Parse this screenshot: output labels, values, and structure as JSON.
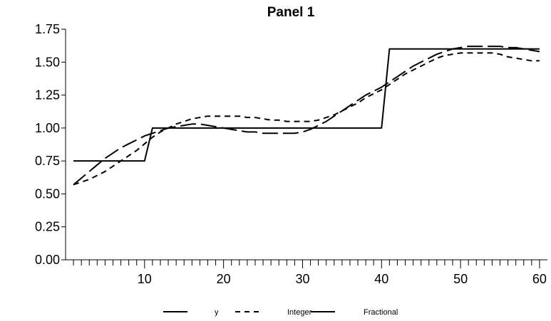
{
  "chart_data": {
    "type": "line",
    "title": "Panel 1",
    "xlabel": "",
    "ylabel": "",
    "xlim": [
      0,
      61
    ],
    "ylim": [
      0,
      1.75
    ],
    "x_ticks": [
      10,
      20,
      30,
      40,
      50,
      60
    ],
    "y_ticks": [
      0.0,
      0.25,
      0.5,
      0.75,
      1.0,
      1.25,
      1.5,
      1.75
    ],
    "y_tick_labels": [
      "0.00",
      "0.25",
      "0.50",
      "0.75",
      "1.00",
      "1.25",
      "1.50",
      "1.75"
    ],
    "x_tick_labels": [
      "10",
      "20",
      "30",
      "40",
      "50",
      "60"
    ],
    "grid": false,
    "legend_position": "bottom",
    "series": [
      {
        "name": "y",
        "style": "solid",
        "x": [
          1,
          10,
          11,
          40,
          41,
          60
        ],
        "y": [
          0.75,
          0.75,
          1.0,
          1.0,
          1.6,
          1.6
        ]
      },
      {
        "name": "Integer",
        "style": "dashed",
        "x": [
          1,
          2,
          3,
          4,
          5,
          6,
          7,
          8,
          9,
          10,
          11,
          12,
          13,
          14,
          15,
          16,
          17,
          18,
          19,
          20,
          21,
          22,
          23,
          24,
          25,
          26,
          27,
          28,
          29,
          30,
          31,
          32,
          33,
          34,
          35,
          36,
          37,
          38,
          39,
          40,
          41,
          42,
          43,
          44,
          45,
          46,
          47,
          48,
          49,
          50,
          51,
          52,
          53,
          54,
          55,
          56,
          57,
          58,
          59,
          60
        ],
        "y": [
          0.57,
          0.59,
          0.61,
          0.64,
          0.67,
          0.71,
          0.75,
          0.79,
          0.83,
          0.88,
          0.93,
          0.97,
          1.0,
          1.03,
          1.05,
          1.07,
          1.08,
          1.09,
          1.09,
          1.09,
          1.09,
          1.09,
          1.08,
          1.08,
          1.07,
          1.06,
          1.06,
          1.05,
          1.05,
          1.05,
          1.05,
          1.06,
          1.08,
          1.1,
          1.13,
          1.16,
          1.19,
          1.23,
          1.26,
          1.29,
          1.33,
          1.37,
          1.41,
          1.44,
          1.47,
          1.5,
          1.53,
          1.55,
          1.56,
          1.57,
          1.57,
          1.57,
          1.57,
          1.57,
          1.56,
          1.54,
          1.53,
          1.52,
          1.51,
          1.51
        ]
      },
      {
        "name": "Fractional",
        "style": "long-dash",
        "x": [
          1,
          2,
          3,
          4,
          5,
          6,
          7,
          8,
          9,
          10,
          11,
          12,
          13,
          14,
          15,
          16,
          17,
          18,
          19,
          20,
          21,
          22,
          23,
          24,
          25,
          26,
          27,
          28,
          29,
          30,
          31,
          32,
          33,
          34,
          35,
          36,
          37,
          38,
          39,
          40,
          41,
          42,
          43,
          44,
          45,
          46,
          47,
          48,
          49,
          50,
          51,
          52,
          53,
          54,
          55,
          56,
          57,
          58,
          59,
          60
        ],
        "y": [
          0.57,
          0.62,
          0.67,
          0.72,
          0.77,
          0.81,
          0.85,
          0.88,
          0.91,
          0.94,
          0.96,
          0.98,
          1.0,
          1.01,
          1.02,
          1.03,
          1.03,
          1.02,
          1.01,
          1.0,
          0.99,
          0.98,
          0.97,
          0.97,
          0.96,
          0.96,
          0.96,
          0.96,
          0.96,
          0.97,
          0.99,
          1.02,
          1.05,
          1.09,
          1.13,
          1.17,
          1.21,
          1.25,
          1.28,
          1.31,
          1.35,
          1.39,
          1.43,
          1.47,
          1.5,
          1.53,
          1.56,
          1.58,
          1.6,
          1.61,
          1.62,
          1.62,
          1.62,
          1.62,
          1.62,
          1.61,
          1.61,
          1.6,
          1.59,
          1.58
        ]
      }
    ]
  }
}
